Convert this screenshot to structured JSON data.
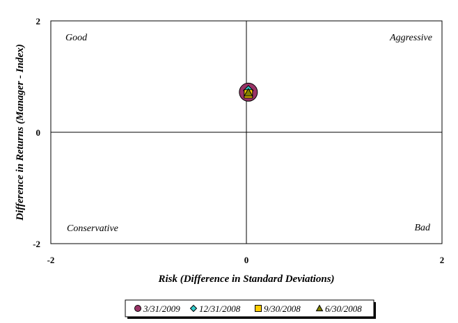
{
  "chart_data": {
    "type": "scatter",
    "xlabel": "Risk (Difference in Standard Deviations)",
    "ylabel": "Difference in Returns (Manager - Index)",
    "xlim": [
      -2,
      2
    ],
    "ylim": [
      -2,
      2
    ],
    "x_ticks": [
      "-2",
      "0",
      "2"
    ],
    "y_ticks": [
      "2",
      "0",
      "-2"
    ],
    "grid": false,
    "legend_position": "bottom",
    "quadrant_labels": {
      "top_left": "Good",
      "top_right": "Aggressive",
      "bottom_left": "Conservative",
      "bottom_right": "Bad"
    },
    "series": [
      {
        "name": "3/31/2009",
        "marker": "circle",
        "color": "#993366",
        "x": [
          0.02
        ],
        "y": [
          0.72
        ]
      },
      {
        "name": "12/31/2008",
        "marker": "diamond",
        "color": "#33CCCC",
        "x": [
          0.02
        ],
        "y": [
          0.75
        ]
      },
      {
        "name": "9/30/2008",
        "marker": "square",
        "color": "#FFCC00",
        "x": [
          0.02
        ],
        "y": [
          0.69
        ]
      },
      {
        "name": "6/30/2008",
        "marker": "triangle",
        "color": "#808000",
        "x": [
          0.02
        ],
        "y": [
          0.71
        ]
      }
    ]
  }
}
